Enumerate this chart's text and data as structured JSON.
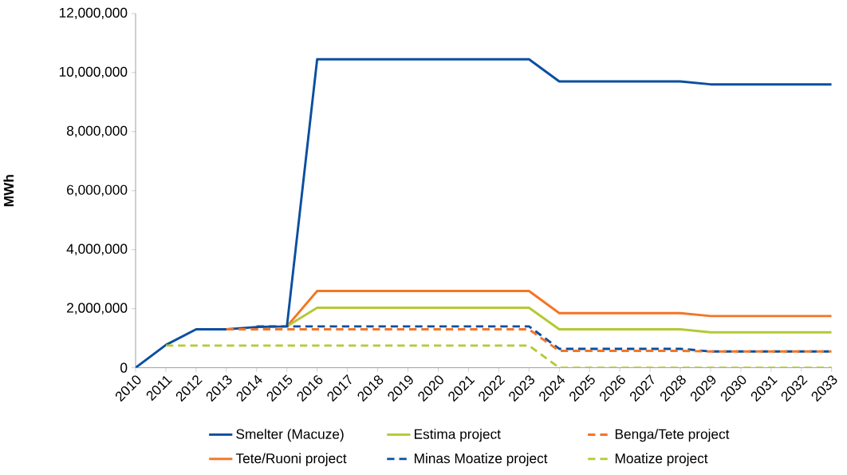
{
  "chart_data": {
    "type": "line",
    "ylabel": "MWh",
    "x": [
      2010,
      2011,
      2012,
      2013,
      2014,
      2015,
      2016,
      2017,
      2018,
      2019,
      2020,
      2021,
      2022,
      2023,
      2024,
      2025,
      2026,
      2027,
      2028,
      2029,
      2030,
      2031,
      2032,
      2033
    ],
    "xlim": [
      2010,
      2033
    ],
    "xticks": [
      2010,
      2011,
      2012,
      2013,
      2014,
      2015,
      2016,
      2017,
      2018,
      2019,
      2020,
      2021,
      2022,
      2023,
      2024,
      2025,
      2026,
      2027,
      2028,
      2029,
      2030,
      2031,
      2032,
      2033
    ],
    "ylim": [
      0,
      12000000
    ],
    "yticks": [
      {
        "value": 0,
        "label": "0"
      },
      {
        "value": 2000000,
        "label": "2,000,000"
      },
      {
        "value": 4000000,
        "label": "4,000,000"
      },
      {
        "value": 6000000,
        "label": "6,000,000"
      },
      {
        "value": 8000000,
        "label": "8,000,000"
      },
      {
        "value": 10000000,
        "label": "10,000,000"
      },
      {
        "value": 12000000,
        "label": "12,000,000"
      }
    ],
    "grid": false,
    "legend": "bottom",
    "marker": "none",
    "series": [
      {
        "name": "Smelter (Macuze)",
        "color": "#0a4fa0",
        "line_style": "solid",
        "values": [
          0,
          770000,
          1300000,
          1300000,
          1380000,
          1400000,
          10450000,
          10450000,
          10450000,
          10450000,
          10450000,
          10450000,
          10450000,
          10450000,
          9700000,
          9700000,
          9700000,
          9700000,
          9700000,
          9600000,
          9600000,
          9600000,
          9600000,
          9600000
        ]
      },
      {
        "name": "Estima project",
        "color": "#b5c934",
        "line_style": "solid",
        "values": [
          null,
          null,
          null,
          null,
          null,
          1400000,
          2030000,
          2030000,
          2030000,
          2030000,
          2030000,
          2030000,
          2030000,
          2030000,
          1300000,
          1300000,
          1300000,
          1300000,
          1300000,
          1200000,
          1200000,
          1200000,
          1200000,
          1200000
        ]
      },
      {
        "name": "Benga/Tete project",
        "color": "#f47524",
        "line_style": "dashed",
        "values": [
          null,
          null,
          null,
          1300000,
          1300000,
          1300000,
          1300000,
          1300000,
          1300000,
          1300000,
          1300000,
          1300000,
          1300000,
          1300000,
          570000,
          570000,
          570000,
          570000,
          570000,
          550000,
          550000,
          550000,
          550000,
          550000
        ]
      },
      {
        "name": "Tete/Ruoni project",
        "color": "#f47524",
        "line_style": "solid",
        "values": [
          null,
          null,
          null,
          null,
          null,
          1400000,
          2600000,
          2600000,
          2600000,
          2600000,
          2600000,
          2600000,
          2600000,
          2600000,
          1850000,
          1850000,
          1850000,
          1850000,
          1850000,
          1750000,
          1750000,
          1750000,
          1750000,
          1750000
        ]
      },
      {
        "name": "Minas Moatize project",
        "color": "#0a4fa0",
        "line_style": "dashed",
        "values": [
          null,
          null,
          null,
          null,
          1400000,
          1400000,
          1400000,
          1400000,
          1400000,
          1400000,
          1400000,
          1400000,
          1400000,
          1400000,
          640000,
          640000,
          640000,
          640000,
          640000,
          550000,
          550000,
          550000,
          550000,
          550000
        ]
      },
      {
        "name": "Moatize project",
        "color": "#b5c934",
        "line_style": "dashed",
        "values": [
          null,
          750000,
          750000,
          750000,
          750000,
          750000,
          750000,
          750000,
          750000,
          750000,
          750000,
          750000,
          750000,
          750000,
          0,
          0,
          0,
          0,
          0,
          0,
          0,
          0,
          0,
          0
        ]
      }
    ]
  }
}
